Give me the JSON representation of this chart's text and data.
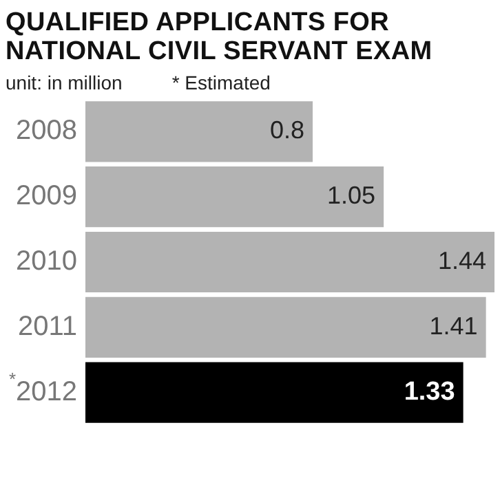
{
  "chart_data": {
    "type": "bar",
    "orientation": "horizontal",
    "title": "QUALIFIED APPLICANTS FOR NATIONAL CIVIL SERVANT EXAM",
    "annotations": [
      "unit: in million",
      "* Estimated"
    ],
    "categories": [
      "2008",
      "2009",
      "2010",
      "2011",
      "$^{*}$2012"
    ],
    "values": [
      0.8,
      1.05,
      1.44,
      1.41,
      1.33
    ],
    "colors": [
      "#b3b3b3",
      "#b3b3b3",
      "#b3b3b3",
      "#b3b3b3",
      "#000000"
    ],
    "data_labels": true,
    "legend": false
  }
}
